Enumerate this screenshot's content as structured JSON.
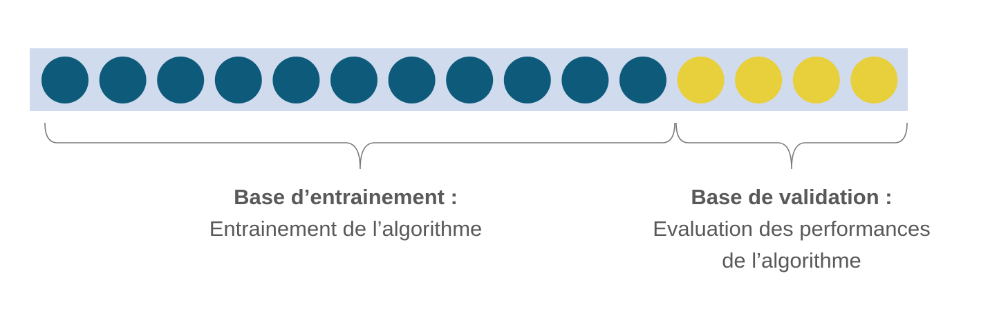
{
  "colors": {
    "band": "#d0dbee",
    "training_dot": "#0e5a7a",
    "validation_dot": "#e8cf3c",
    "brace": "#7a7a7a",
    "text": "#595959"
  },
  "samples": {
    "training_count": 11,
    "validation_count": 4
  },
  "training": {
    "title": "Base d’entrainement :",
    "description": "Entrainement de l’algorithme"
  },
  "validation": {
    "title": "Base de validation :",
    "description_line1": "Evaluation des performances",
    "description_line2": "de l’algorithme"
  }
}
